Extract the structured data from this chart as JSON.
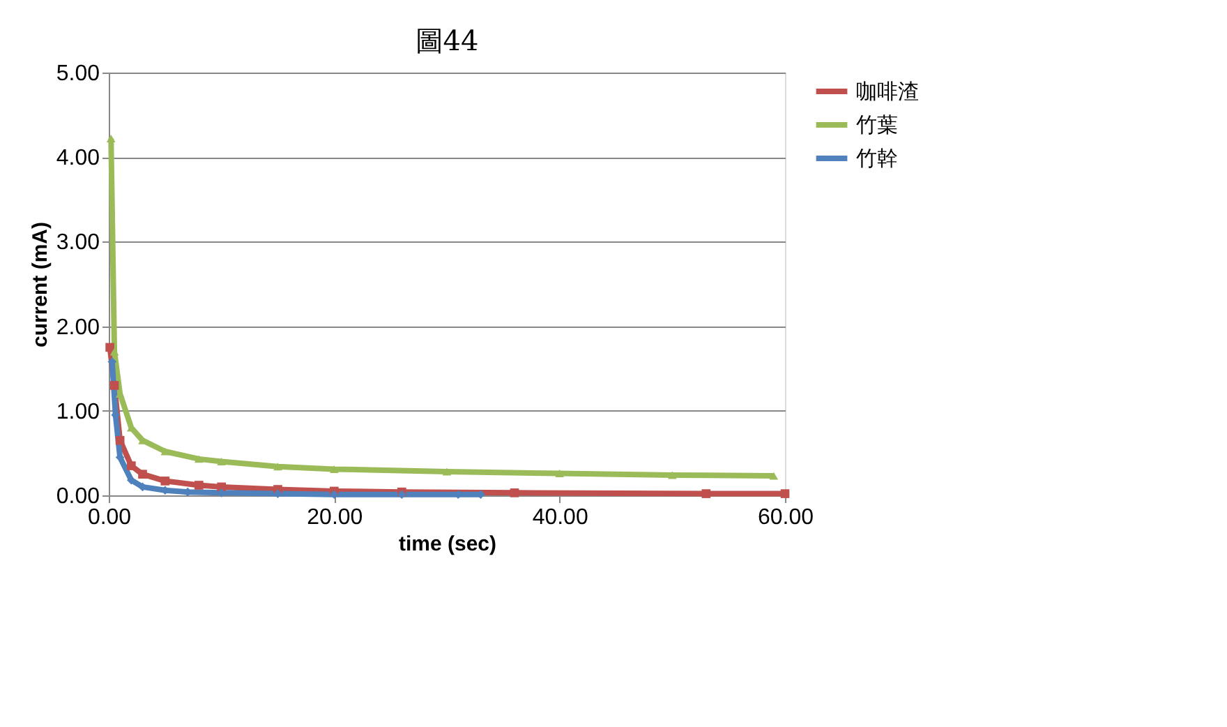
{
  "chart_data": {
    "type": "line",
    "title": "圖44",
    "xlabel": "time (sec)",
    "ylabel": "current (mA)",
    "xlim": [
      0,
      60
    ],
    "xticks": [
      {
        "value": 0,
        "label": "0.00"
      },
      {
        "value": 20,
        "label": "20.00"
      },
      {
        "value": 40,
        "label": "40.00"
      },
      {
        "value": 60,
        "label": "60.00"
      }
    ],
    "ylim": [
      0,
      5
    ],
    "yticks": [
      {
        "value": 0,
        "label": "0.00"
      },
      {
        "value": 1,
        "label": "1.00"
      },
      {
        "value": 2,
        "label": "2.00"
      },
      {
        "value": 3,
        "label": "3.00"
      },
      {
        "value": 4,
        "label": "4.00"
      },
      {
        "value": 5,
        "label": "5.00"
      }
    ],
    "grid": "y",
    "legend": "right",
    "line_style": "solid",
    "series": [
      {
        "name": "咖啡渣",
        "color": "#c0504d",
        "marker": "square",
        "x": [
          0.1,
          0.5,
          1,
          2,
          3,
          5,
          8,
          10,
          15,
          20,
          26,
          36,
          53,
          60
        ],
        "values": [
          1.75,
          1.3,
          0.65,
          0.35,
          0.25,
          0.17,
          0.12,
          0.1,
          0.07,
          0.05,
          0.04,
          0.03,
          0.02,
          0.02
        ]
      },
      {
        "name": "竹葉",
        "color": "#9bbb59",
        "marker": "triangle",
        "x": [
          0.2,
          0.5,
          1,
          2,
          3,
          5,
          8,
          10,
          15,
          20,
          30,
          40,
          50,
          59
        ],
        "values": [
          4.22,
          1.7,
          1.2,
          0.8,
          0.65,
          0.52,
          0.43,
          0.4,
          0.34,
          0.31,
          0.28,
          0.26,
          0.24,
          0.23
        ]
      },
      {
        "name": "竹幹",
        "color": "#4f81bd",
        "marker": "diamond",
        "x": [
          0.3,
          0.6,
          1,
          2,
          3,
          5,
          7,
          10,
          15,
          20,
          26,
          31,
          33
        ],
        "values": [
          1.58,
          0.95,
          0.45,
          0.18,
          0.1,
          0.06,
          0.04,
          0.03,
          0.02,
          0.01,
          0.01,
          0.01,
          0.01
        ]
      }
    ]
  }
}
